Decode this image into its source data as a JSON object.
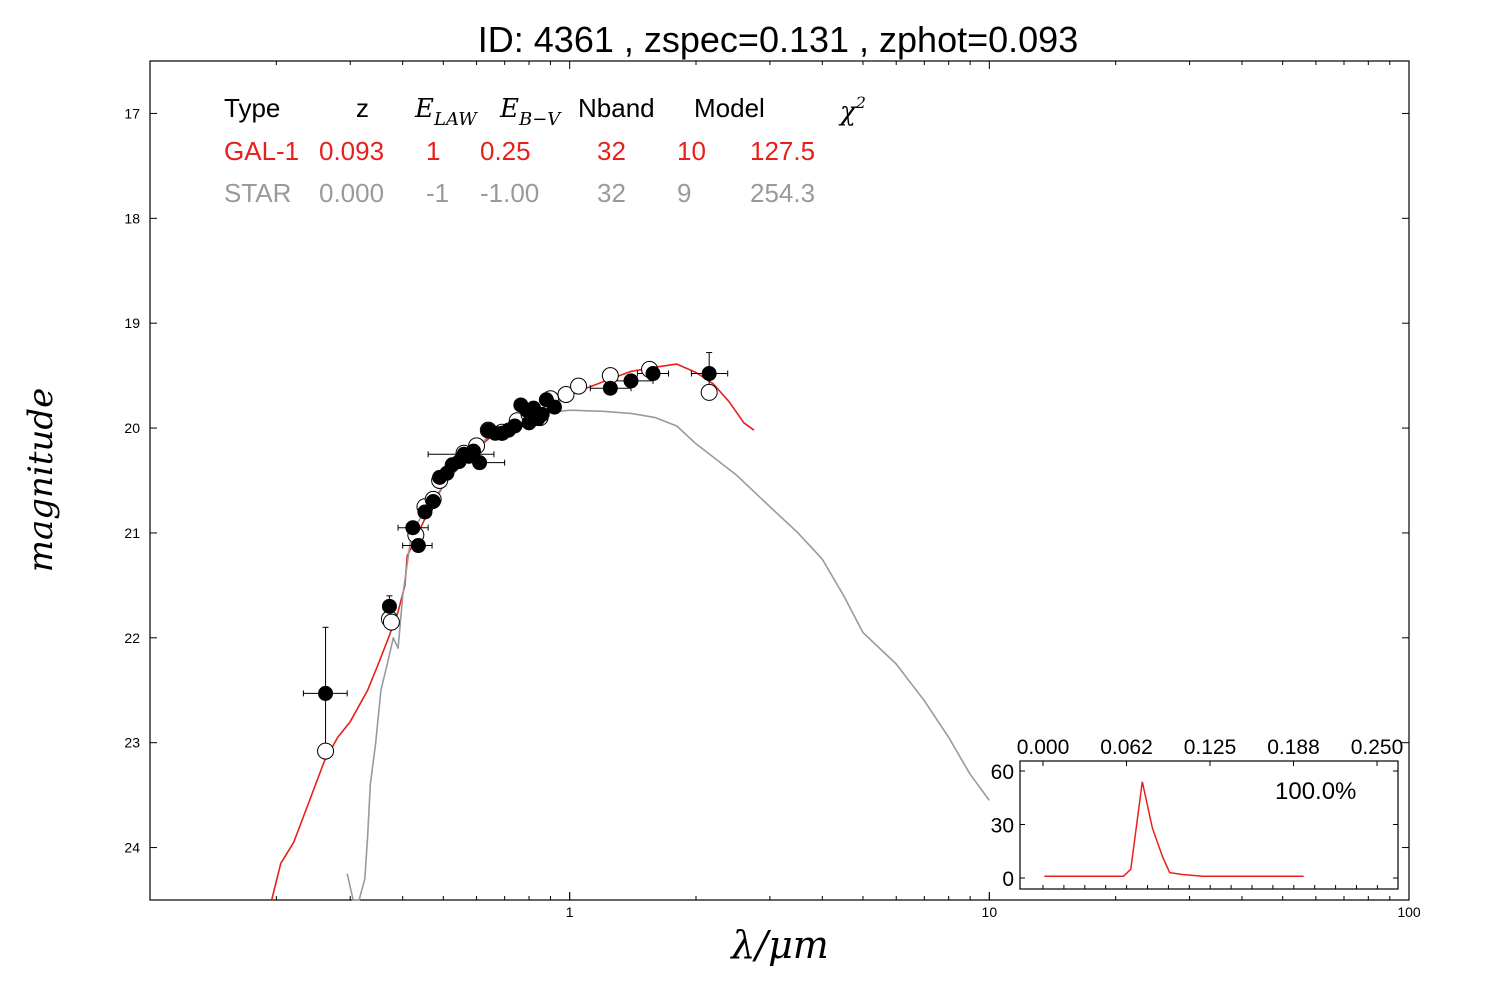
{
  "chart_data": [
    {
      "type": "scatter",
      "title": "ID:  4361  , zspec=0.131 , zphot=0.093",
      "xlabel": "λ/μm",
      "ylabel": "magnitude",
      "x_scale": "log",
      "xlim": [
        0.1,
        100
      ],
      "ylim": [
        24.5,
        16.5
      ],
      "y_inverted": true,
      "x_ticks": [
        {
          "value": 1,
          "label": "1"
        },
        {
          "value": 10,
          "label": "10"
        },
        {
          "value": 100,
          "label": "100"
        }
      ],
      "y_ticks": [
        {
          "value": 17,
          "label": "17"
        },
        {
          "value": 18,
          "label": "18"
        },
        {
          "value": 19,
          "label": "19"
        },
        {
          "value": 20,
          "label": "20"
        },
        {
          "value": 21,
          "label": "21"
        },
        {
          "value": 22,
          "label": "22"
        },
        {
          "value": 23,
          "label": "23"
        },
        {
          "value": 24,
          "label": "24"
        }
      ],
      "grid": false,
      "fit_table": {
        "headers": [
          "Type",
          "z",
          "E_LAW",
          "E_B−V",
          "Nband",
          "Model",
          "χ²"
        ],
        "rows": [
          {
            "color": "#e8201c",
            "cells": [
              "GAL-1",
              "0.093",
              "1",
              "0.25",
              "32",
              "10",
              "127.5"
            ]
          },
          {
            "color": "#9a9a9a",
            "cells": [
              "STAR",
              "0.000",
              "-1",
              "-1.00",
              "32",
              "9",
              "254.3"
            ]
          }
        ]
      },
      "series": [
        {
          "kind": "observed",
          "marker": "filled-circle",
          "color": "#000000",
          "points": [
            {
              "x": 0.262,
              "y": 22.53,
              "xerr": [
                0.232,
                0.295
              ],
              "yerr": [
                21.9,
                23.1
              ]
            },
            {
              "x": 0.372,
              "y": 21.7,
              "xerr": [
                0.36,
                0.385
              ],
              "yerr": [
                21.6,
                21.8
              ]
            },
            {
              "x": 0.423,
              "y": 20.95,
              "xerr": [
                0.39,
                0.46
              ],
              "yerr": null
            },
            {
              "x": 0.436,
              "y": 21.12,
              "xerr": [
                0.4,
                0.47
              ],
              "yerr": null
            },
            {
              "x": 0.452,
              "y": 20.8,
              "xerr": null,
              "yerr": null
            },
            {
              "x": 0.473,
              "y": 20.7,
              "xerr": null,
              "yerr": null
            },
            {
              "x": 0.49,
              "y": 20.47,
              "xerr": null,
              "yerr": null
            },
            {
              "x": 0.51,
              "y": 20.43,
              "xerr": null,
              "yerr": null
            },
            {
              "x": 0.525,
              "y": 20.35,
              "xerr": null,
              "yerr": null
            },
            {
              "x": 0.545,
              "y": 20.32,
              "xerr": null,
              "yerr": null
            },
            {
              "x": 0.56,
              "y": 20.25,
              "xerr": [
                0.46,
                0.66
              ],
              "yerr": null
            },
            {
              "x": 0.575,
              "y": 20.27,
              "xerr": null,
              "yerr": null
            },
            {
              "x": 0.59,
              "y": 20.22,
              "xerr": null,
              "yerr": null
            },
            {
              "x": 0.61,
              "y": 20.33,
              "xerr": [
                0.53,
                0.7
              ],
              "yerr": null
            },
            {
              "x": 0.64,
              "y": 20.02,
              "xerr": null,
              "yerr": null
            },
            {
              "x": 0.665,
              "y": 20.05,
              "xerr": null,
              "yerr": null
            },
            {
              "x": 0.69,
              "y": 20.05,
              "xerr": null,
              "yerr": null
            },
            {
              "x": 0.715,
              "y": 20.02,
              "xerr": null,
              "yerr": null
            },
            {
              "x": 0.74,
              "y": 19.98,
              "xerr": null,
              "yerr": null
            },
            {
              "x": 0.765,
              "y": 19.78,
              "xerr": null,
              "yerr": null
            },
            {
              "x": 0.79,
              "y": 19.83,
              "xerr": null,
              "yerr": null
            },
            {
              "x": 0.8,
              "y": 19.95,
              "xerr": null,
              "yerr": null
            },
            {
              "x": 0.82,
              "y": 19.81,
              "xerr": null,
              "yerr": null
            },
            {
              "x": 0.84,
              "y": 19.91,
              "xerr": null,
              "yerr": null
            },
            {
              "x": 0.86,
              "y": 19.87,
              "xerr": null,
              "yerr": null
            },
            {
              "x": 0.88,
              "y": 19.73,
              "xerr": null,
              "yerr": null
            },
            {
              "x": 0.92,
              "y": 19.8,
              "xerr": null,
              "yerr": null
            },
            {
              "x": 1.25,
              "y": 19.62,
              "xerr": [
                1.12,
                1.4
              ],
              "yerr": null
            },
            {
              "x": 1.4,
              "y": 19.55,
              "xerr": [
                1.25,
                1.58
              ],
              "yerr": null
            },
            {
              "x": 1.58,
              "y": 19.48,
              "xerr": [
                1.45,
                1.72
              ],
              "yerr": null
            },
            {
              "x": 2.15,
              "y": 19.48,
              "xerr": [
                1.95,
                2.38
              ],
              "yerr": [
                19.28,
                19.65
              ]
            }
          ]
        },
        {
          "kind": "model-predicted",
          "marker": "open-circle",
          "color": "#000000",
          "points": [
            {
              "x": 0.262,
              "y": 23.08
            },
            {
              "x": 0.372,
              "y": 21.82
            },
            {
              "x": 0.376,
              "y": 21.85
            },
            {
              "x": 0.43,
              "y": 21.02
            },
            {
              "x": 0.452,
              "y": 20.75
            },
            {
              "x": 0.473,
              "y": 20.68
            },
            {
              "x": 0.49,
              "y": 20.5
            },
            {
              "x": 0.56,
              "y": 20.24
            },
            {
              "x": 0.6,
              "y": 20.17
            },
            {
              "x": 0.64,
              "y": 20.02
            },
            {
              "x": 0.69,
              "y": 20.04
            },
            {
              "x": 0.75,
              "y": 19.93
            },
            {
              "x": 0.8,
              "y": 19.87
            },
            {
              "x": 0.85,
              "y": 19.9
            },
            {
              "x": 0.9,
              "y": 19.72
            },
            {
              "x": 0.98,
              "y": 19.68
            },
            {
              "x": 1.05,
              "y": 19.6
            },
            {
              "x": 1.25,
              "y": 19.5
            },
            {
              "x": 1.55,
              "y": 19.44
            },
            {
              "x": 2.15,
              "y": 19.66
            }
          ]
        },
        {
          "name": "GAL-1",
          "kind": "template",
          "color": "#e8201c",
          "line": true,
          "points": [
            [
              0.195,
              24.5
            ],
            [
              0.205,
              24.15
            ],
            [
              0.22,
              23.95
            ],
            [
              0.24,
              23.55
            ],
            [
              0.26,
              23.18
            ],
            [
              0.28,
              22.95
            ],
            [
              0.3,
              22.8
            ],
            [
              0.33,
              22.5
            ],
            [
              0.35,
              22.25
            ],
            [
              0.37,
              22.0
            ],
            [
              0.39,
              21.75
            ],
            [
              0.405,
              21.5
            ],
            [
              0.41,
              21.22
            ],
            [
              0.43,
              21.05
            ],
            [
              0.46,
              20.8
            ],
            [
              0.5,
              20.55
            ],
            [
              0.55,
              20.35
            ],
            [
              0.6,
              20.2
            ],
            [
              0.65,
              20.08
            ],
            [
              0.7,
              20.02
            ],
            [
              0.75,
              19.95
            ],
            [
              0.8,
              19.88
            ],
            [
              0.9,
              19.8
            ],
            [
              1.0,
              19.68
            ],
            [
              1.2,
              19.56
            ],
            [
              1.4,
              19.46
            ],
            [
              1.6,
              19.42
            ],
            [
              1.8,
              19.39
            ],
            [
              2.0,
              19.47
            ],
            [
              2.2,
              19.58
            ],
            [
              2.4,
              19.75
            ],
            [
              2.6,
              19.95
            ],
            [
              2.75,
              20.02
            ]
          ]
        },
        {
          "name": "STAR",
          "kind": "template",
          "color": "#9a9a9a",
          "line": true,
          "points": [
            [
              0.295,
              24.25
            ],
            [
              0.305,
              24.5
            ],
            [
              0.315,
              24.6
            ],
            [
              0.325,
              24.3
            ],
            [
              0.33,
              23.9
            ],
            [
              0.335,
              23.4
            ],
            [
              0.345,
              23.0
            ],
            [
              0.355,
              22.5
            ],
            [
              0.37,
              22.2
            ],
            [
              0.38,
              22.0
            ],
            [
              0.39,
              22.1
            ],
            [
              0.4,
              21.6
            ],
            [
              0.42,
              21.0
            ],
            [
              0.45,
              20.8
            ],
            [
              0.5,
              20.55
            ],
            [
              0.55,
              20.35
            ],
            [
              0.6,
              20.2
            ],
            [
              0.65,
              20.05
            ],
            [
              0.7,
              20.02
            ],
            [
              0.8,
              19.9
            ],
            [
              0.9,
              19.85
            ],
            [
              1.0,
              19.83
            ],
            [
              1.2,
              19.84
            ],
            [
              1.4,
              19.86
            ],
            [
              1.6,
              19.9
            ],
            [
              1.8,
              19.98
            ],
            [
              2.0,
              20.15
            ],
            [
              2.5,
              20.45
            ],
            [
              3.0,
              20.75
            ],
            [
              3.5,
              21.0
            ],
            [
              4.0,
              21.25
            ],
            [
              4.5,
              21.6
            ],
            [
              5.0,
              21.95
            ],
            [
              6.0,
              22.25
            ],
            [
              7.0,
              22.6
            ],
            [
              8.0,
              22.95
            ],
            [
              9.0,
              23.3
            ],
            [
              10.0,
              23.55
            ]
          ]
        }
      ]
    },
    {
      "type": "line",
      "role": "inset",
      "top_tick_labels": [
        "0.000",
        "0.062",
        "0.125",
        "0.188",
        "0.250"
      ],
      "xlim": [
        0,
        0.25
      ],
      "ylim": [
        0,
        60
      ],
      "y_tick_labels": [
        "60",
        "30",
        "0"
      ],
      "annotation": "100.0%",
      "color": "#e8201c",
      "series": [
        {
          "points": [
            [
              0.01,
              1
            ],
            [
              0.05,
              1
            ],
            [
              0.065,
              1
            ],
            [
              0.07,
              5
            ],
            [
              0.078,
              54
            ],
            [
              0.085,
              28
            ],
            [
              0.092,
              12
            ],
            [
              0.097,
              3
            ],
            [
              0.105,
              2
            ],
            [
              0.12,
              1
            ],
            [
              0.14,
              1
            ],
            [
              0.19,
              1
            ]
          ]
        }
      ]
    }
  ]
}
